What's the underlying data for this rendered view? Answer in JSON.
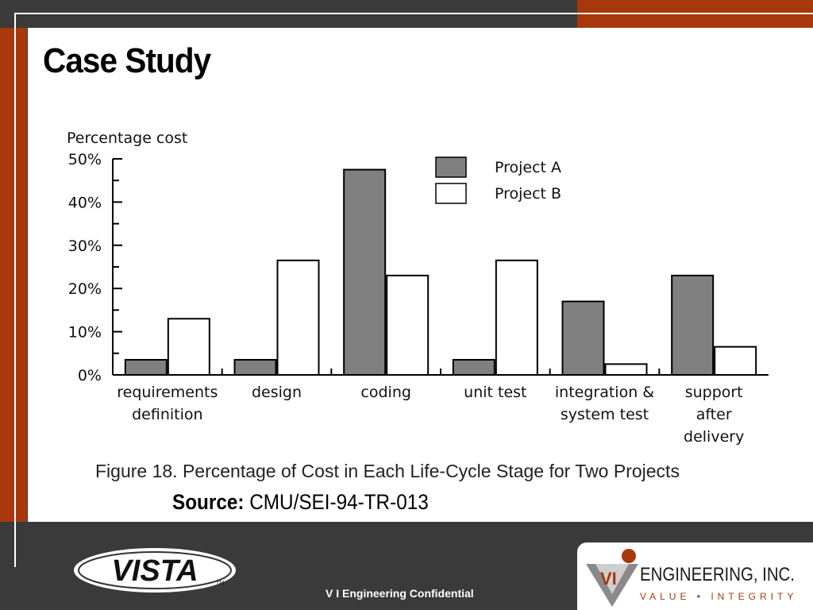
{
  "slide": {
    "title": "Case Study",
    "caption": "Figure 18.  Percentage of Cost in Each Life-Cycle Stage for Two Projects",
    "source_label": "Source:",
    "source_value": "CMU/SEI-94-TR-013",
    "footer": "V I Engineering Confidential"
  },
  "logos": {
    "vista": "VISTA",
    "vista_tm": "TM",
    "vi_mark": "VI",
    "vi_name": "ENGINEERING, INC.",
    "vi_tagline": "VALUE • INTEGRITY"
  },
  "colors": {
    "accent": "#a8380c",
    "dark": "#3a3a3a",
    "project_a": "#808080",
    "project_b": "#ffffff"
  },
  "chart_data": {
    "type": "bar",
    "title": "",
    "ylabel": "Percentage cost",
    "xlabel": "",
    "ylim": [
      0,
      50
    ],
    "yticks": [
      "0%",
      "10%",
      "20%",
      "30%",
      "40%",
      "50%"
    ],
    "categories": [
      [
        "requirements",
        "definition"
      ],
      [
        "design"
      ],
      [
        "coding"
      ],
      [
        "unit test"
      ],
      [
        "integration &",
        "system test"
      ],
      [
        "support",
        "after",
        "delivery"
      ]
    ],
    "series": [
      {
        "name": "Project A",
        "color": "#808080",
        "values": [
          3.5,
          3.5,
          47.5,
          3.5,
          17,
          23
        ]
      },
      {
        "name": "Project B",
        "color": "#ffffff",
        "values": [
          13,
          26.5,
          23,
          26.5,
          2.5,
          6.5
        ]
      }
    ],
    "legend": "top-right"
  }
}
